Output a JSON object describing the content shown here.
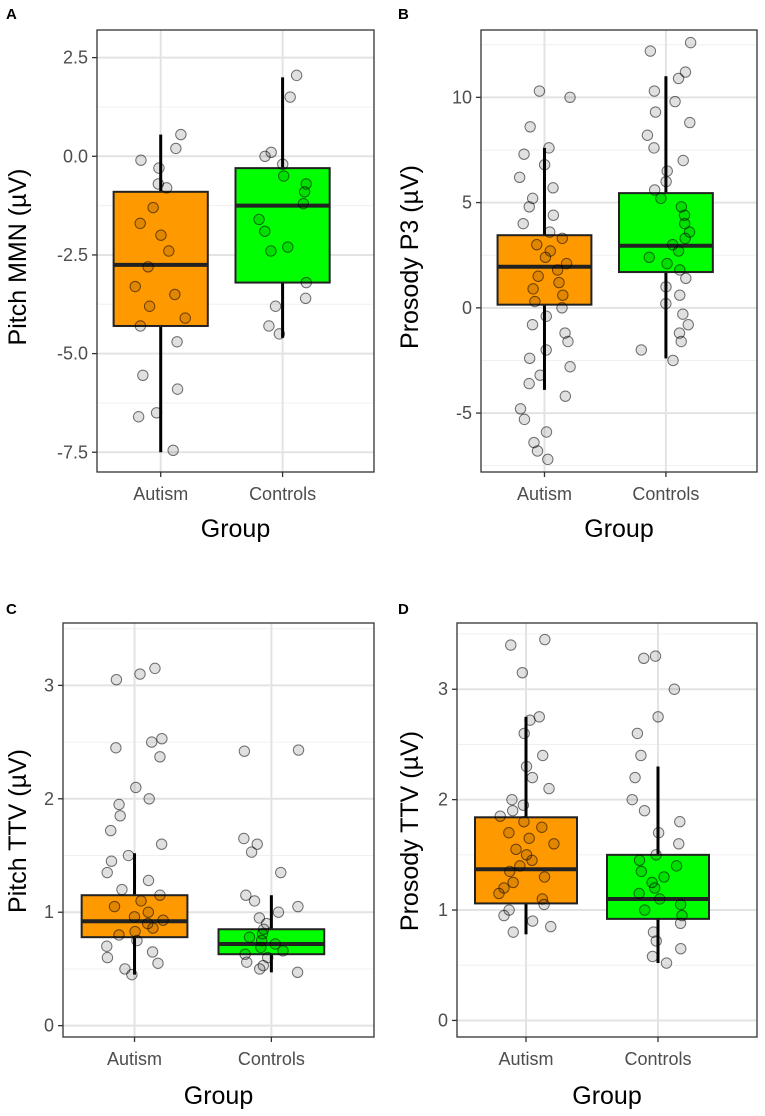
{
  "colors": {
    "autism": "#ff9900",
    "controls": "#00ff00"
  },
  "chart_data": [
    {
      "panel": "A",
      "type": "box",
      "xlabel": "Group",
      "ylabel": "Pitch MMN (µV)",
      "categories": [
        "Autism",
        "Controls"
      ],
      "ylim": [
        -8.0,
        3.2
      ],
      "yticks": [
        2.5,
        0.0,
        -2.5,
        -5.0,
        -7.5
      ],
      "ytick_labels": [
        "2.5",
        "0.0",
        "-2.5",
        "-5.0",
        "-7.5"
      ],
      "boxes": [
        {
          "group": "Autism",
          "q1": -4.3,
          "median": -2.75,
          "q3": -0.9,
          "whisker_low": -7.5,
          "whisker_high": 0.55
        },
        {
          "group": "Controls",
          "q1": -3.2,
          "median": -1.25,
          "q3": -0.3,
          "whisker_low": -4.6,
          "whisker_high": 2.0
        }
      ],
      "points": [
        [
          -7.45,
          -6.6,
          -6.5,
          -5.9,
          -5.55,
          -4.7,
          -4.3,
          -4.1,
          -3.8,
          -3.5,
          -3.3,
          -2.8,
          -2.4,
          -2.0,
          -1.7,
          -1.3,
          -0.8,
          -0.7,
          -0.3,
          -0.1,
          0.2,
          0.55
        ],
        [
          -4.5,
          -4.3,
          -3.8,
          -3.6,
          -3.2,
          -2.4,
          -2.3,
          -1.9,
          -1.6,
          -1.2,
          -0.9,
          -0.7,
          -0.5,
          -0.2,
          0.0,
          0.1,
          1.5,
          2.05
        ]
      ]
    },
    {
      "panel": "B",
      "type": "box",
      "xlabel": "Group",
      "ylabel": "Prosody P3 (µV)",
      "categories": [
        "Autism",
        "Controls"
      ],
      "ylim": [
        -7.8,
        13.2
      ],
      "yticks": [
        10,
        5,
        0,
        -5
      ],
      "ytick_labels": [
        "10",
        "5",
        "0",
        "-5"
      ],
      "boxes": [
        {
          "group": "Autism",
          "q1": 0.15,
          "median": 1.95,
          "q3": 3.45,
          "whisker_low": -3.9,
          "whisker_high": 7.6
        },
        {
          "group": "Controls",
          "q1": 1.7,
          "median": 2.95,
          "q3": 5.45,
          "whisker_low": -2.4,
          "whisker_high": 11.0
        }
      ],
      "points": [
        [
          -7.2,
          -6.8,
          -6.4,
          -5.9,
          -5.3,
          -4.8,
          -4.2,
          -3.6,
          -3.2,
          -2.8,
          -2.4,
          -2.0,
          -1.6,
          -1.2,
          -0.8,
          -0.4,
          0.0,
          0.3,
          0.6,
          0.9,
          1.2,
          1.5,
          1.8,
          2.1,
          2.4,
          2.7,
          3.0,
          3.3,
          3.6,
          4.0,
          4.4,
          4.8,
          5.2,
          5.7,
          6.2,
          6.8,
          7.3,
          7.6,
          8.6,
          10.0,
          10.3
        ],
        [
          -2.5,
          -2.0,
          -1.6,
          -1.2,
          -0.8,
          -0.3,
          0.2,
          0.6,
          1.0,
          1.4,
          1.8,
          2.1,
          2.4,
          2.7,
          3.0,
          3.3,
          3.6,
          4.0,
          4.4,
          4.8,
          5.2,
          5.6,
          6.0,
          6.5,
          7.0,
          7.6,
          8.2,
          8.8,
          9.3,
          9.8,
          10.3,
          10.9,
          11.2,
          12.2,
          12.6
        ]
      ]
    },
    {
      "panel": "C",
      "type": "box",
      "xlabel": "Group",
      "ylabel": "Pitch TTV (µV)",
      "categories": [
        "Autism",
        "Controls"
      ],
      "ylim": [
        -0.1,
        3.55
      ],
      "yticks": [
        3,
        2,
        1,
        0
      ],
      "ytick_labels": [
        "3",
        "2",
        "1",
        "0"
      ],
      "boxes": [
        {
          "group": "Autism",
          "q1": 0.78,
          "median": 0.92,
          "q3": 1.15,
          "whisker_low": 0.45,
          "whisker_high": 1.52
        },
        {
          "group": "Controls",
          "q1": 0.63,
          "median": 0.72,
          "q3": 0.85,
          "whisker_low": 0.47,
          "whisker_high": 1.15
        }
      ],
      "points": [
        [
          0.45,
          0.5,
          0.55,
          0.6,
          0.65,
          0.7,
          0.75,
          0.8,
          0.83,
          0.86,
          0.9,
          0.93,
          0.96,
          1.0,
          1.05,
          1.1,
          1.15,
          1.2,
          1.28,
          1.35,
          1.45,
          1.5,
          1.6,
          1.72,
          1.85,
          1.95,
          2.0,
          2.1,
          2.37,
          2.45,
          2.5,
          2.53,
          3.05,
          3.1,
          3.15
        ],
        [
          0.47,
          0.5,
          0.53,
          0.56,
          0.6,
          0.63,
          0.66,
          0.69,
          0.72,
          0.75,
          0.78,
          0.81,
          0.85,
          0.9,
          0.95,
          1.0,
          1.05,
          1.1,
          1.15,
          1.35,
          1.53,
          1.6,
          1.65,
          2.42,
          2.43
        ]
      ]
    },
    {
      "panel": "D",
      "type": "box",
      "xlabel": "Group",
      "ylabel": "Prosody TTV (µV)",
      "categories": [
        "Autism",
        "Controls"
      ],
      "ylim": [
        -0.15,
        3.6
      ],
      "yticks": [
        3,
        2,
        1,
        0
      ],
      "ytick_labels": [
        "3",
        "2",
        "1",
        "0"
      ],
      "boxes": [
        {
          "group": "Autism",
          "q1": 1.06,
          "median": 1.37,
          "q3": 1.84,
          "whisker_low": 0.78,
          "whisker_high": 2.75
        },
        {
          "group": "Controls",
          "q1": 0.92,
          "median": 1.1,
          "q3": 1.5,
          "whisker_low": 0.52,
          "whisker_high": 2.3
        }
      ],
      "points": [
        [
          0.8,
          0.85,
          0.9,
          0.95,
          1.0,
          1.05,
          1.1,
          1.15,
          1.2,
          1.25,
          1.3,
          1.35,
          1.4,
          1.45,
          1.5,
          1.55,
          1.6,
          1.65,
          1.7,
          1.75,
          1.8,
          1.85,
          1.9,
          1.95,
          2.0,
          2.1,
          2.2,
          2.3,
          2.4,
          2.6,
          2.72,
          2.75,
          3.15,
          3.4,
          3.45
        ],
        [
          0.52,
          0.58,
          0.65,
          0.72,
          0.8,
          0.88,
          0.95,
          1.0,
          1.05,
          1.1,
          1.15,
          1.2,
          1.25,
          1.3,
          1.35,
          1.4,
          1.45,
          1.5,
          1.6,
          1.7,
          1.8,
          1.9,
          2.0,
          2.2,
          2.4,
          2.6,
          2.75,
          3.0,
          3.28,
          3.3
        ]
      ]
    }
  ]
}
